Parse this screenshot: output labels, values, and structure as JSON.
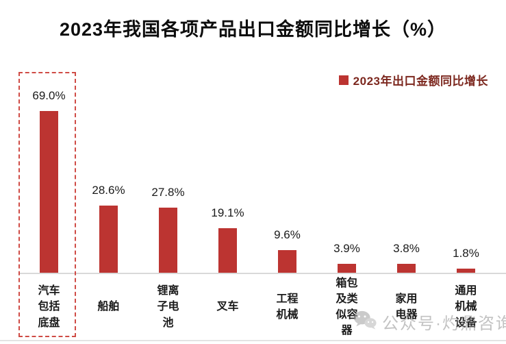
{
  "title": "2023年我国各项产品出口金额同比增长（%）",
  "legend": {
    "label": "2023年出口金额同比增长",
    "swatch_color": "#bc3431"
  },
  "watermark": {
    "icon": "wechat-icon",
    "text": "公众号·灼鼎咨询"
  },
  "colors": {
    "bar": "#bc3431",
    "highlight_border": "#cf4b45",
    "axis_line": "#d9d9d9",
    "legend_text": "#7c271e",
    "title_text": "#0d0d0d"
  },
  "chart_data": {
    "type": "bar",
    "title": "2023年我国各项产品出口金额同比增长（%）",
    "categories": [
      "汽车包括底盘",
      "船舶",
      "锂离子电池",
      "叉车",
      "工程机械",
      "箱包及类似容器",
      "家用电器",
      "通用机械设备"
    ],
    "category_display_lines": [
      [
        "汽车",
        "包括",
        "底盘"
      ],
      [
        "船舶"
      ],
      [
        "锂离",
        "子电",
        "池"
      ],
      [
        "叉车"
      ],
      [
        "工程",
        "机械"
      ],
      [
        "箱包",
        "及类",
        "似容",
        "器"
      ],
      [
        "家用",
        "电器"
      ],
      [
        "通用",
        "机械",
        "设备"
      ]
    ],
    "values": [
      69.0,
      28.6,
      27.8,
      19.1,
      9.6,
      3.9,
      3.8,
      1.8
    ],
    "value_labels": [
      "69.0%",
      "28.6%",
      "27.8%",
      "19.1%",
      "9.6%",
      "3.9%",
      "3.8%",
      "1.8%"
    ],
    "series": [
      {
        "name": "2023年出口金额同比增长",
        "values": [
          69.0,
          28.6,
          27.8,
          19.1,
          9.6,
          3.9,
          3.8,
          1.8
        ]
      }
    ],
    "xlabel": "",
    "ylabel": "",
    "ylim": [
      0,
      75
    ],
    "grid": false,
    "legend_position": "top-right",
    "data_labels": true,
    "highlighted_category": "汽车包括底盘"
  }
}
